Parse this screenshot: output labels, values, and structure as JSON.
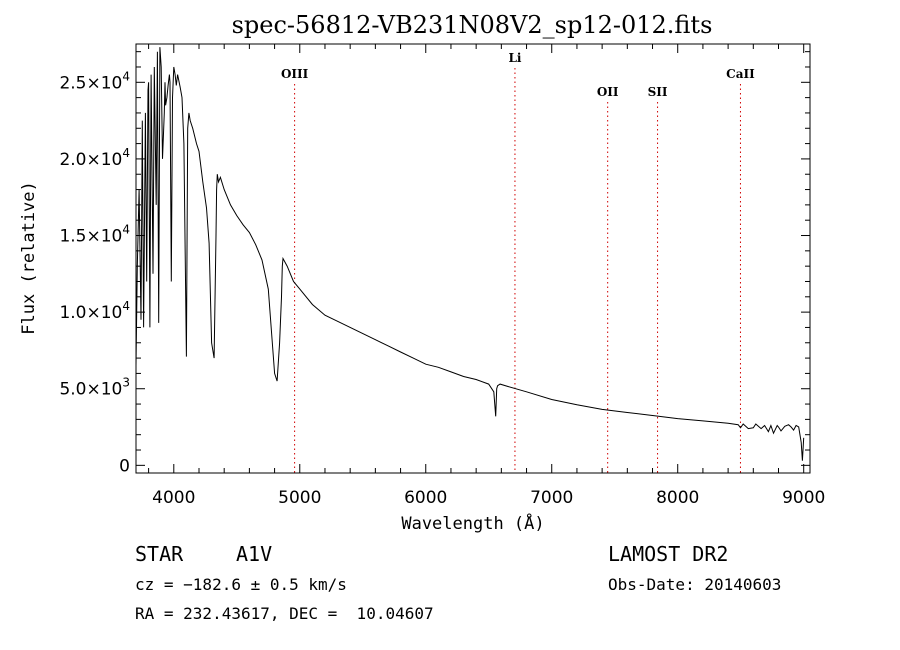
{
  "chart_data": {
    "type": "line",
    "title": "spec-56812-VB231N08V2_sp12-012.fits",
    "xlabel": "Wavelength (Å)",
    "ylabel": "Flux (relative)",
    "xlim": [
      3700,
      9050
    ],
    "ylim": [
      -500,
      27500
    ],
    "grid": false,
    "x_ticks": [
      4000,
      5000,
      6000,
      7000,
      8000,
      9000
    ],
    "y_ticks": [
      {
        "value": 0,
        "label": "0",
        "exp": ""
      },
      {
        "value": 5000,
        "label": "5.0×10",
        "exp": "3"
      },
      {
        "value": 10000,
        "label": "1.0×10",
        "exp": "4"
      },
      {
        "value": 15000,
        "label": "1.5×10",
        "exp": "4"
      },
      {
        "value": 20000,
        "label": "2.0×10",
        "exp": "4"
      },
      {
        "value": 25000,
        "label": "2.5×10",
        "exp": "4"
      }
    ],
    "series": [
      {
        "x": [
          3700,
          3710,
          3725,
          3740,
          3750,
          3760,
          3775,
          3785,
          3795,
          3800,
          3810,
          3820,
          3835,
          3845,
          3860,
          3870,
          3880,
          3890,
          3900,
          3910,
          3925,
          3930,
          3935,
          3945,
          3955,
          3965,
          3970,
          3980,
          3990,
          4000,
          4010,
          4020,
          4030,
          4050,
          4065,
          4080,
          4100,
          4110,
          4120,
          4130,
          4150,
          4180,
          4200,
          4230,
          4260,
          4280,
          4300,
          4320,
          4335,
          4340,
          4345,
          4355,
          4370,
          4400,
          4450,
          4500,
          4550,
          4600,
          4650,
          4700,
          4750,
          4800,
          4820,
          4840,
          4855,
          4861,
          4867,
          4880,
          4900,
          4950,
          5000,
          5100,
          5200,
          5300,
          5400,
          5500,
          5600,
          5700,
          5800,
          5900,
          6000,
          6100,
          6200,
          6300,
          6400,
          6500,
          6540,
          6555,
          6563,
          6570,
          6590,
          6650,
          6800,
          7000,
          7200,
          7400,
          7600,
          7800,
          8000,
          8200,
          8400,
          8480,
          8498,
          8520,
          8540,
          8560,
          8600,
          8620,
          8662,
          8690,
          8720,
          8740,
          8760,
          8790,
          8800,
          8820,
          8850,
          8880,
          8900,
          8920,
          8940,
          8960,
          8980,
          8990,
          9000
        ],
        "y": [
          6500,
          13000,
          18000,
          9500,
          22500,
          9000,
          23000,
          12000,
          24500,
          25000,
          9000,
          25500,
          12500,
          26000,
          17000,
          27000,
          9300,
          27300,
          26000,
          20000,
          23000,
          25000,
          23500,
          24000,
          24800,
          25500,
          25000,
          12000,
          24000,
          26000,
          25500,
          24800,
          25500,
          24700,
          24000,
          21000,
          7100,
          22000,
          23000,
          22500,
          22000,
          21000,
          20500,
          18500,
          16800,
          14500,
          8000,
          7000,
          15000,
          18000,
          19000,
          18500,
          18800,
          18000,
          17000,
          16300,
          15700,
          15200,
          14400,
          13400,
          11500,
          6000,
          5500,
          8000,
          11000,
          13000,
          13500,
          13300,
          13000,
          12000,
          11500,
          10500,
          9800,
          9400,
          9000,
          8600,
          8200,
          7800,
          7400,
          7000,
          6600,
          6400,
          6100,
          5800,
          5600,
          5300,
          4800,
          3200,
          5000,
          5200,
          5300,
          5150,
          4800,
          4300,
          3950,
          3650,
          3450,
          3250,
          3050,
          2900,
          2750,
          2650,
          2450,
          2700,
          2550,
          2400,
          2450,
          2700,
          2400,
          2600,
          2200,
          2600,
          2100,
          2600,
          2500,
          2250,
          2550,
          2650,
          2500,
          2300,
          2600,
          2500,
          1500,
          300,
          1800
        ]
      }
    ],
    "line_markers": [
      {
        "label": "OIII",
        "x": 4959
      },
      {
        "label": "Li",
        "x": 6708
      },
      {
        "label": "OII",
        "x": 7444
      },
      {
        "label": "SII",
        "x": 7840
      },
      {
        "label": "CaII",
        "x": 8498
      }
    ]
  },
  "info": {
    "object_class": "STAR",
    "subclass": "A1V",
    "survey": "LAMOST DR2",
    "redshift": "cz = −182.6 ± 0.5 km/s",
    "obs_date": "Obs-Date: 20140603",
    "coords": "RA = 232.43617, DEC =  10.04607"
  }
}
